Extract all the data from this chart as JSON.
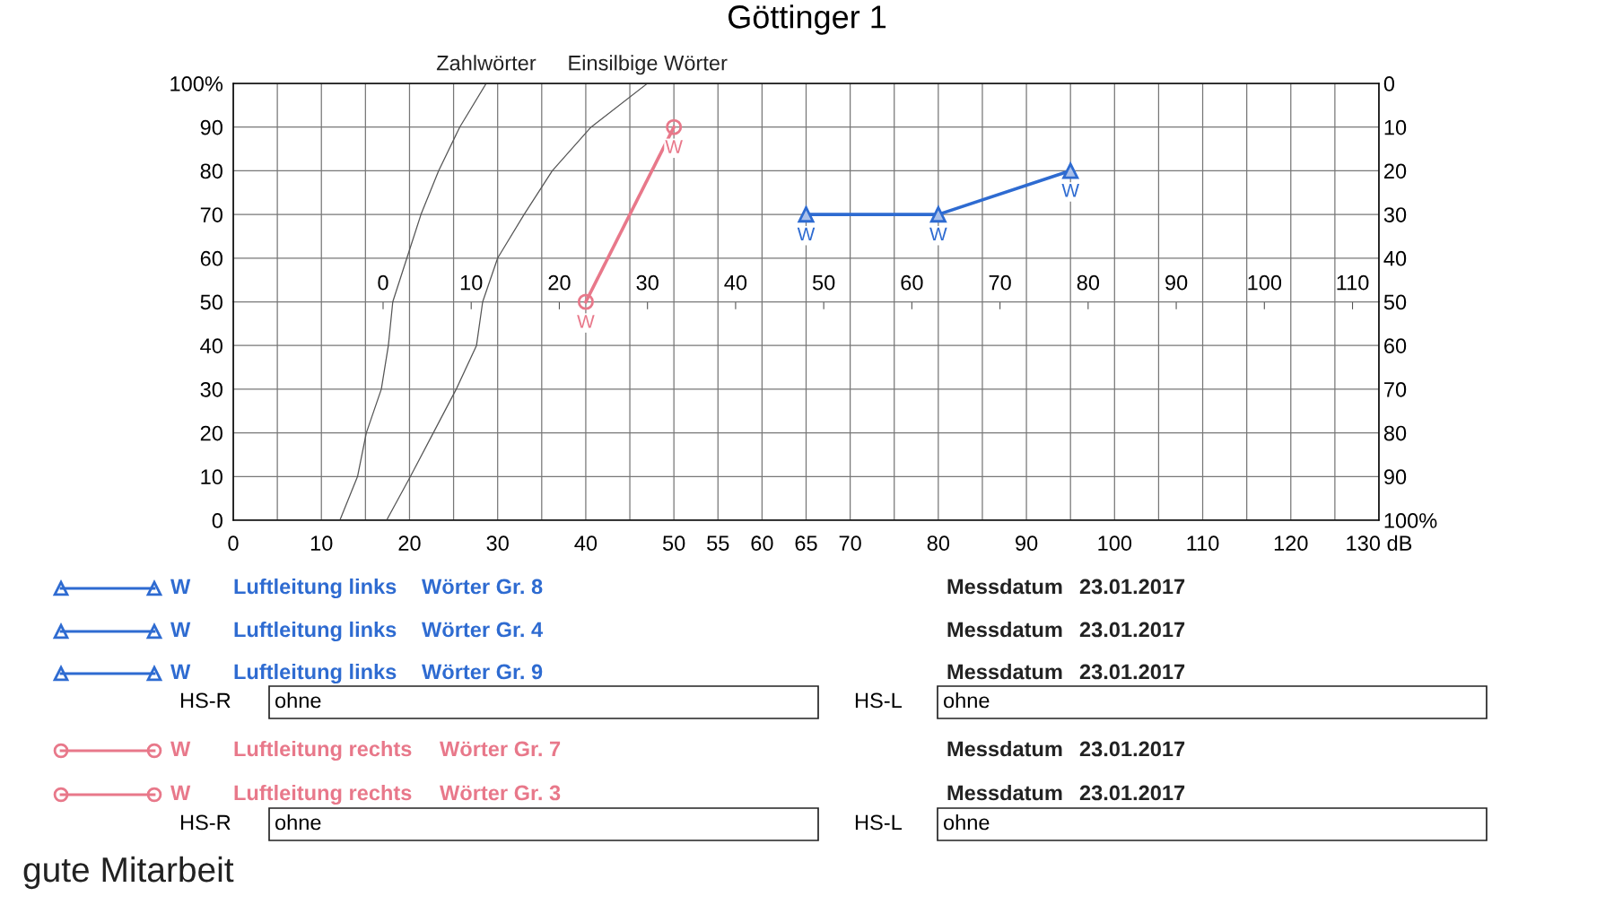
{
  "chart_data": {
    "type": "line",
    "title": "Göttinger 1",
    "xlim": [
      0,
      130
    ],
    "xticks": [
      0,
      {
        "value": 5,
        "label": null
      },
      10,
      {
        "value": 15,
        "label": null
      },
      20,
      {
        "value": 25,
        "label": null
      },
      30,
      {
        "value": 35,
        "label": null
      },
      40,
      {
        "value": 45,
        "label": null
      },
      50,
      55,
      60,
      65,
      70,
      {
        "value": 75,
        "label": null
      },
      80,
      {
        "value": 85,
        "label": null
      },
      90,
      {
        "value": 95,
        "label": null
      },
      100,
      {
        "value": 105,
        "label": null
      },
      110,
      {
        "value": 115,
        "label": null
      },
      120,
      {
        "value": 125,
        "label": null
      },
      {
        "value": 130,
        "label": "130 dB"
      }
    ],
    "ylim": [
      0,
      100
    ],
    "yticks": [
      0,
      10,
      20,
      30,
      40,
      50,
      60,
      70,
      80,
      90,
      {
        "value": 100,
        "label": "100%"
      }
    ],
    "y2lim": [
      100,
      0
    ],
    "y2ticks": [
      0,
      10,
      20,
      30,
      40,
      50,
      60,
      70,
      80,
      90,
      {
        "value": 100,
        "label": "100%"
      }
    ],
    "x2lim": [
      -17,
      113
    ],
    "x2ticks": [
      0,
      10,
      20,
      30,
      40,
      50,
      60,
      70,
      80,
      90,
      100,
      110
    ],
    "grid": true,
    "series": [
      {
        "name": "Zahlwörter",
        "color": "#555555",
        "marker": "none",
        "x": [
          12.1,
          14.1,
          15.1,
          16.8,
          17.6,
          18.1,
          19.7,
          21.3,
          23.3,
          25.7,
          28.7
        ],
        "values": [
          0,
          10,
          20,
          30,
          40,
          50,
          60,
          70,
          80,
          90,
          100
        ]
      },
      {
        "name": "Einsilbige Wörter",
        "color": "#555555",
        "marker": "none",
        "x": [
          17.4,
          20.1,
          22.7,
          25.3,
          27.6,
          28.3,
          30.0,
          33.0,
          36.2,
          40.6,
          47.0
        ],
        "values": [
          0,
          10,
          20,
          30,
          40,
          50,
          60,
          70,
          80,
          90,
          100
        ]
      },
      {
        "color": "#e8788a",
        "marker": "circle",
        "x": [
          40,
          50
        ],
        "values": [
          50,
          90
        ],
        "value_labels": [
          "W",
          "W"
        ]
      },
      {
        "color": "#2e6bd1",
        "marker": "triangle",
        "x": [
          65,
          80,
          95
        ],
        "values": [
          70,
          70,
          80
        ],
        "value_labels": [
          "W",
          "W",
          "W"
        ]
      }
    ],
    "annotations": [
      "W",
      "Luftleitung links",
      "Wörter Gr. 8",
      "Messdatum",
      "23.01.2017",
      "W",
      "Luftleitung links",
      "Wörter Gr. 4",
      "Messdatum",
      "23.01.2017",
      "W",
      "Luftleitung links",
      "Wörter Gr. 9",
      "Messdatum",
      "23.01.2017",
      "HS-R",
      "ohne",
      "HS-L",
      "ohne",
      "W",
      "Luftleitung rechts",
      "Wörter Gr. 7",
      "Messdatum",
      "23.01.2017",
      "W",
      "Luftleitung rechts",
      "Wörter Gr. 3",
      "Messdatum",
      "23.01.2017",
      "HS-R",
      "ohne",
      "HS-L",
      "ohne",
      "gute Mitarbeit"
    ]
  }
}
